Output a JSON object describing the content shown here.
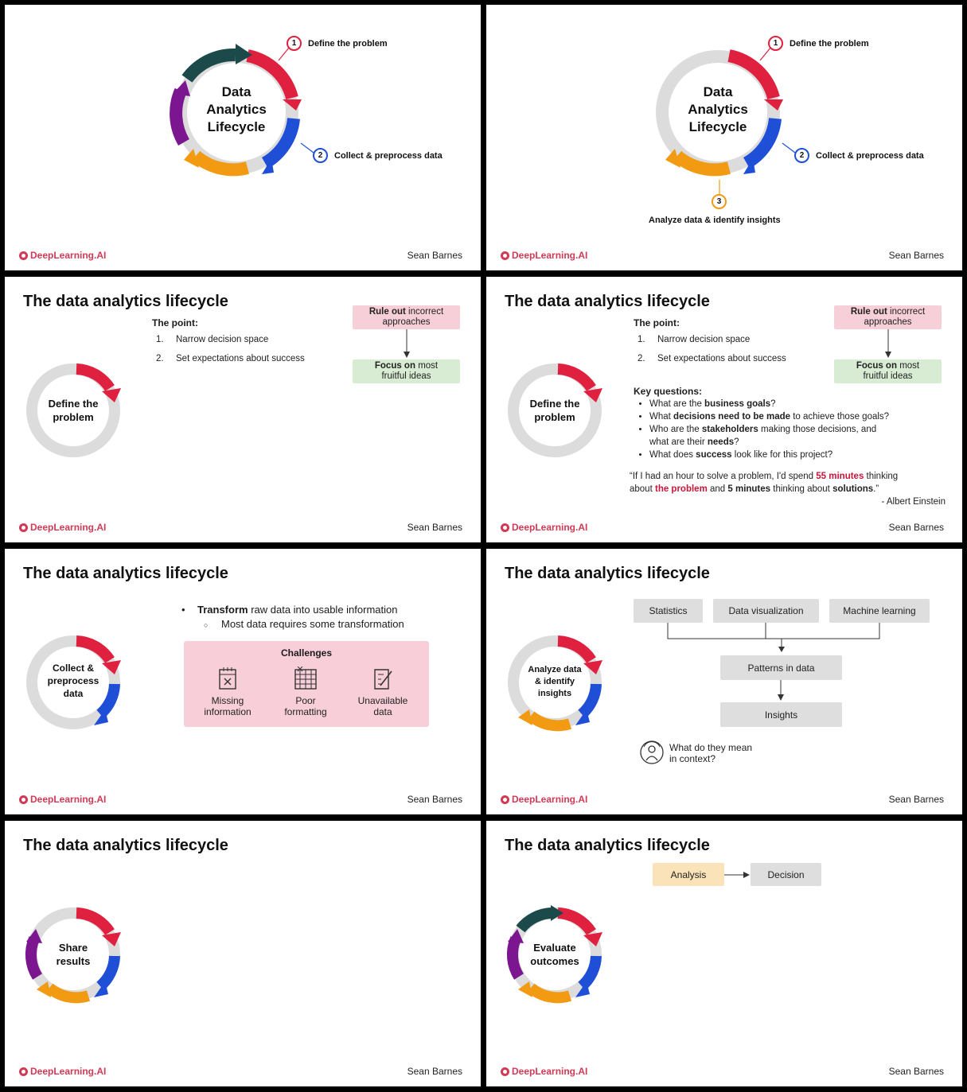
{
  "common": {
    "brand": "DeepLearning.AI",
    "author": "Sean Barnes",
    "slide_title": "The data analytics lifecycle"
  },
  "slide1": {
    "center": [
      "Data",
      "Analytics",
      "Lifecycle"
    ],
    "step1": "Define the problem",
    "step2": "Collect & preprocess data"
  },
  "slide2": {
    "center": [
      "Data",
      "Analytics",
      "Lifecycle"
    ],
    "step1": "Define the problem",
    "step2": "Collect & preprocess data",
    "step3": "Analyze data & identify insights"
  },
  "slide3": {
    "ring_label": [
      "Define the",
      "problem"
    ],
    "point_head": "The point:",
    "points": [
      "Narrow decision space",
      "Set expectations about success"
    ],
    "rule_out": {
      "bold": "Rule out",
      "rest": " incorrect",
      "line2": "approaches"
    },
    "focus_on": {
      "bold": "Focus on",
      "rest": " most",
      "line2": "fruitful ideas"
    }
  },
  "slide4": {
    "key_head": "Key questions:",
    "questions": [
      {
        "a": "What are the ",
        "b": "business goals",
        "c": "?"
      },
      {
        "a": "What ",
        "b": "decisions need to be made",
        "c": " to achieve those goals?"
      },
      {
        "a": "Who are the ",
        "b": "stakeholders",
        "c": " making those decisions, and"
      },
      {
        "a": "What does ",
        "b": "success",
        "c": " look like for this project?"
      }
    ],
    "q3_line2": {
      "a": "what are their ",
      "b": "needs",
      "c": "?"
    },
    "quote": {
      "p1": "“If I had an hour to solve a problem, I'd spend ",
      "p2": "55 minutes",
      "p3": " thinking",
      "p4": "about ",
      "p5": "the problem",
      "p6": " and ",
      "p7": "5 minutes",
      "p8": " thinking about ",
      "p9": "solutions",
      "p10": ".”",
      "attribution": "- Albert Einstein"
    }
  },
  "slide5": {
    "ring_label": [
      "Collect &",
      "preprocess",
      "data"
    ],
    "bullet_bold": "Transform",
    "bullet_rest": " raw data into usable information",
    "sub_bullet": "Most data requires some transformation",
    "challenges_head": "Challenges",
    "challenges": [
      {
        "icon": "missing-calendar-icon",
        "line1": "Missing",
        "line2": "information"
      },
      {
        "icon": "table-grid-icon",
        "line1": "Poor",
        "line2": "formatting"
      },
      {
        "icon": "unavailable-pencil-icon",
        "line1": "Unavailable",
        "line2": "data"
      }
    ]
  },
  "slide6": {
    "ring_label": [
      "Analyze data",
      "& identify",
      "insights"
    ],
    "methods": [
      "Statistics",
      "Data visualization",
      "Machine learning"
    ],
    "patterns": "Patterns in data",
    "insights": "Insights",
    "context_q1": "What do they mean",
    "context_q2": "in context?"
  },
  "slide7": {
    "ring_label": [
      "Share",
      "results"
    ]
  },
  "slide8": {
    "ring_label": [
      "Evaluate",
      "outcomes"
    ],
    "analysis": "Analysis",
    "decision": "Decision"
  },
  "colors": {
    "red": "#e0203f",
    "blue": "#1f4fd6",
    "orange": "#f29a12",
    "purple": "#7b1690",
    "teal": "#1c4a4a",
    "ring_grey": "#dcdcdc",
    "brand": "#d13a55"
  }
}
